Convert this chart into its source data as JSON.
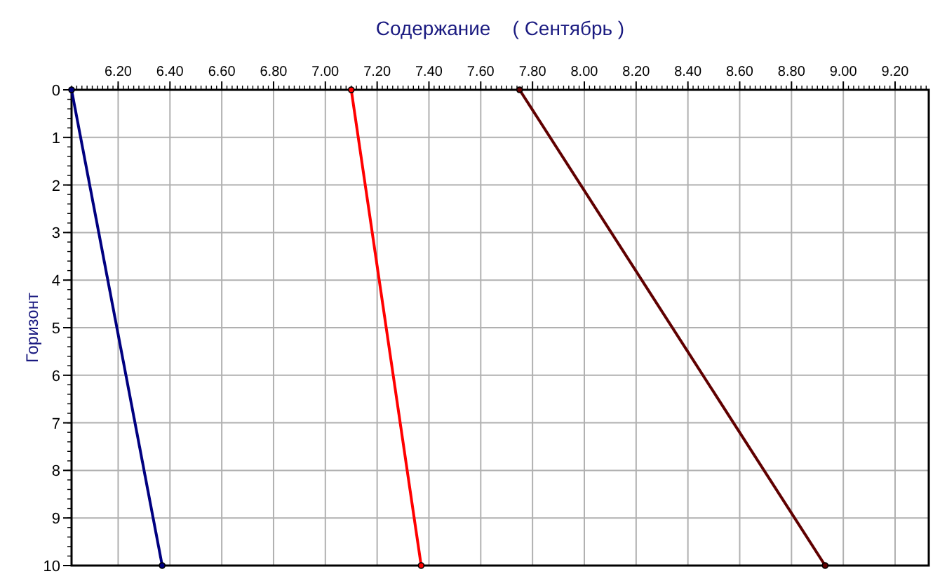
{
  "chart_data": {
    "type": "line",
    "title": "Содержание    ( Сентябрь )",
    "ylabel": "Горизонт",
    "series": [
      {
        "color": "#000080",
        "x": [
          6.02,
          6.37
        ],
        "values": [
          0,
          10
        ]
      },
      {
        "color": "#ff0000",
        "x": [
          7.1,
          7.37
        ],
        "values": [
          0,
          10
        ]
      },
      {
        "color": "#600000",
        "x": [
          7.75,
          8.93
        ],
        "values": [
          0,
          10
        ]
      }
    ],
    "xlim": [
      6.02,
      9.33
    ],
    "xticks": [
      {
        "value": 6.2,
        "label": "6.20"
      },
      {
        "value": 6.4,
        "label": "6.40"
      },
      {
        "value": 6.6,
        "label": "6.60"
      },
      {
        "value": 6.8,
        "label": "6.80"
      },
      {
        "value": 7,
        "label": "7.00"
      },
      {
        "value": 7.2,
        "label": "7.20"
      },
      {
        "value": 7.4,
        "label": "7.40"
      },
      {
        "value": 7.6,
        "label": "7.60"
      },
      {
        "value": 7.8,
        "label": "7.80"
      },
      {
        "value": 8,
        "label": "8.00"
      },
      {
        "value": 8.2,
        "label": "8.20"
      },
      {
        "value": 8.4,
        "label": "8.40"
      },
      {
        "value": 8.6,
        "label": "8.60"
      },
      {
        "value": 8.8,
        "label": "8.80"
      },
      {
        "value": 9,
        "label": "9.00"
      },
      {
        "value": 9.2,
        "label": "9.20"
      }
    ],
    "ylim": [
      10,
      0
    ],
    "yticks": [
      0,
      1,
      2,
      3,
      4,
      5,
      6,
      7,
      8,
      9,
      10
    ],
    "grid": true,
    "marker": "circle",
    "line_style": "solid"
  }
}
